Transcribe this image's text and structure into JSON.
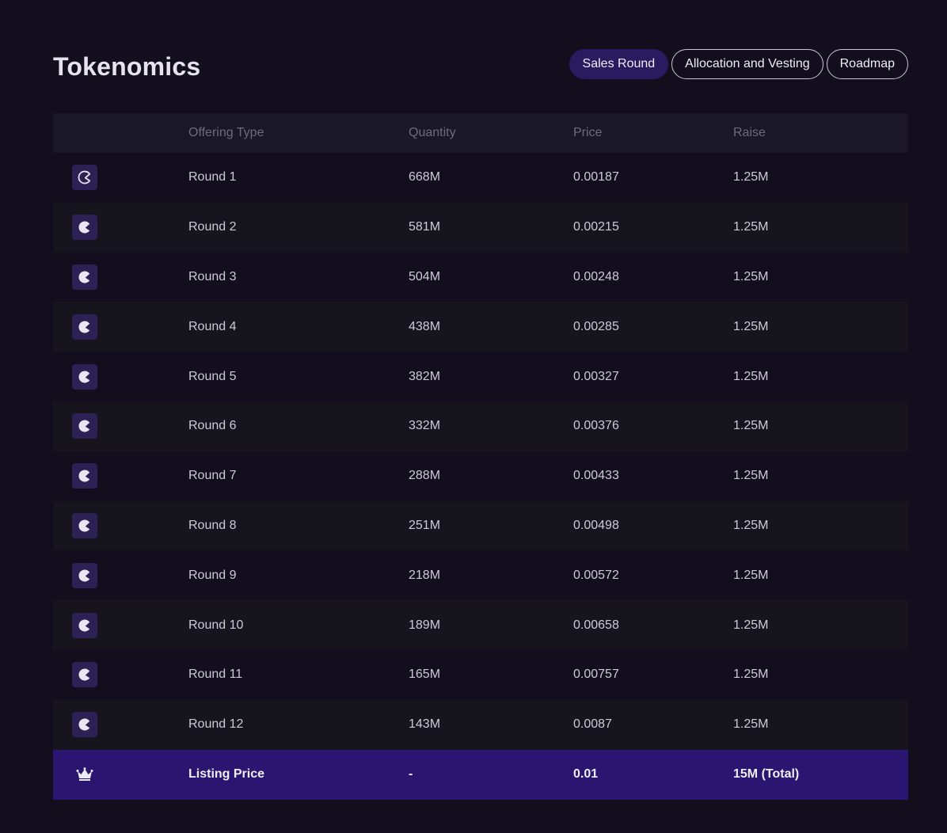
{
  "page": {
    "title": "Tokenomics"
  },
  "tabs": [
    {
      "label": "Sales Round",
      "active": true
    },
    {
      "label": "Allocation and Vesting",
      "active": false
    },
    {
      "label": "Roadmap",
      "active": false
    }
  ],
  "table": {
    "headers": {
      "offering_type": "Offering Type",
      "quantity": "Quantity",
      "price": "Price",
      "raise": "Raise"
    },
    "rows": [
      {
        "type": "Round 1",
        "quantity": "668M",
        "price": "0.00187",
        "raise": "1.25M",
        "icon": "round-outline-icon"
      },
      {
        "type": "Round 2",
        "quantity": "581M",
        "price": "0.00215",
        "raise": "1.25M",
        "icon": "round-filled-icon"
      },
      {
        "type": "Round 3",
        "quantity": "504M",
        "price": "0.00248",
        "raise": "1.25M",
        "icon": "round-filled-icon"
      },
      {
        "type": "Round 4",
        "quantity": "438M",
        "price": "0.00285",
        "raise": "1.25M",
        "icon": "round-filled-icon"
      },
      {
        "type": "Round 5",
        "quantity": "382M",
        "price": "0.00327",
        "raise": "1.25M",
        "icon": "round-filled-icon"
      },
      {
        "type": "Round 6",
        "quantity": "332M",
        "price": "0.00376",
        "raise": "1.25M",
        "icon": "round-filled-icon"
      },
      {
        "type": "Round 7",
        "quantity": "288M",
        "price": "0.00433",
        "raise": "1.25M",
        "icon": "round-filled-icon"
      },
      {
        "type": "Round 8",
        "quantity": "251M",
        "price": "0.00498",
        "raise": "1.25M",
        "icon": "round-filled-icon"
      },
      {
        "type": "Round 9",
        "quantity": "218M",
        "price": "0.00572",
        "raise": "1.25M",
        "icon": "round-filled-icon"
      },
      {
        "type": "Round 10",
        "quantity": "189M",
        "price": "0.00658",
        "raise": "1.25M",
        "icon": "round-filled-icon"
      },
      {
        "type": "Round 11",
        "quantity": "165M",
        "price": "0.00757",
        "raise": "1.25M",
        "icon": "round-filled-icon"
      },
      {
        "type": "Round 12",
        "quantity": "143M",
        "price": "0.0087",
        "raise": "1.25M",
        "icon": "round-filled-icon"
      }
    ],
    "footer": {
      "type": "Listing Price",
      "quantity": "-",
      "price": "0.01",
      "raise": "15M (Total)",
      "icon": "crown-icon"
    }
  },
  "colors": {
    "background": "#120e1d",
    "accent": "#2a1b60",
    "footer_bg": "#2a1670"
  }
}
